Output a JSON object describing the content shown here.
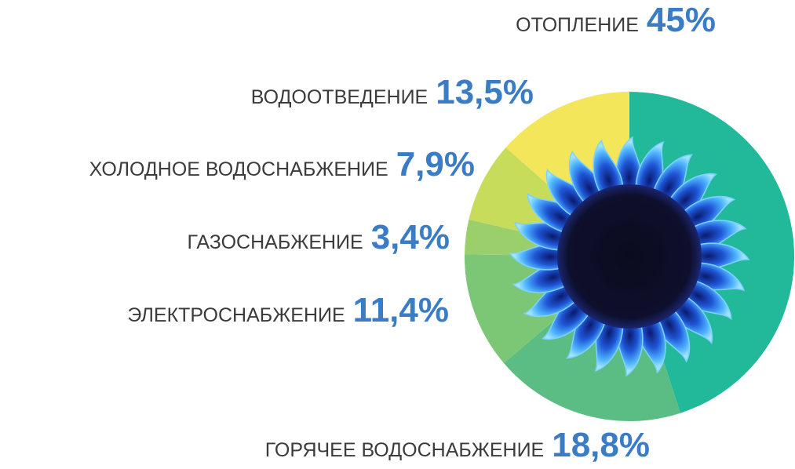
{
  "chart_data": {
    "type": "pie",
    "categories": [
      "ОТОПЛЕНИЕ",
      "ГОРЯЧЕЕ ВОДОСНАБЖЕНИЕ",
      "ЭЛЕКТРОСНАБЖЕНИЕ",
      "ГАЗОСНАБЖЕНИЕ",
      "ХОЛОДНОЕ ВОДОСНАБЖЕНИЕ",
      "ВОДООТВЕДЕНИЕ"
    ],
    "values": [
      45,
      18.8,
      11.4,
      3.4,
      7.9,
      13.5
    ],
    "value_labels": [
      "45%",
      "18,8%",
      "11,4%",
      "3,4%",
      "7,9%",
      "13,5%"
    ],
    "colors": [
      "#22b99a",
      "#5cbd84",
      "#7cc775",
      "#9bcf6b",
      "#c8dc5c",
      "#f3e65a"
    ]
  }
}
